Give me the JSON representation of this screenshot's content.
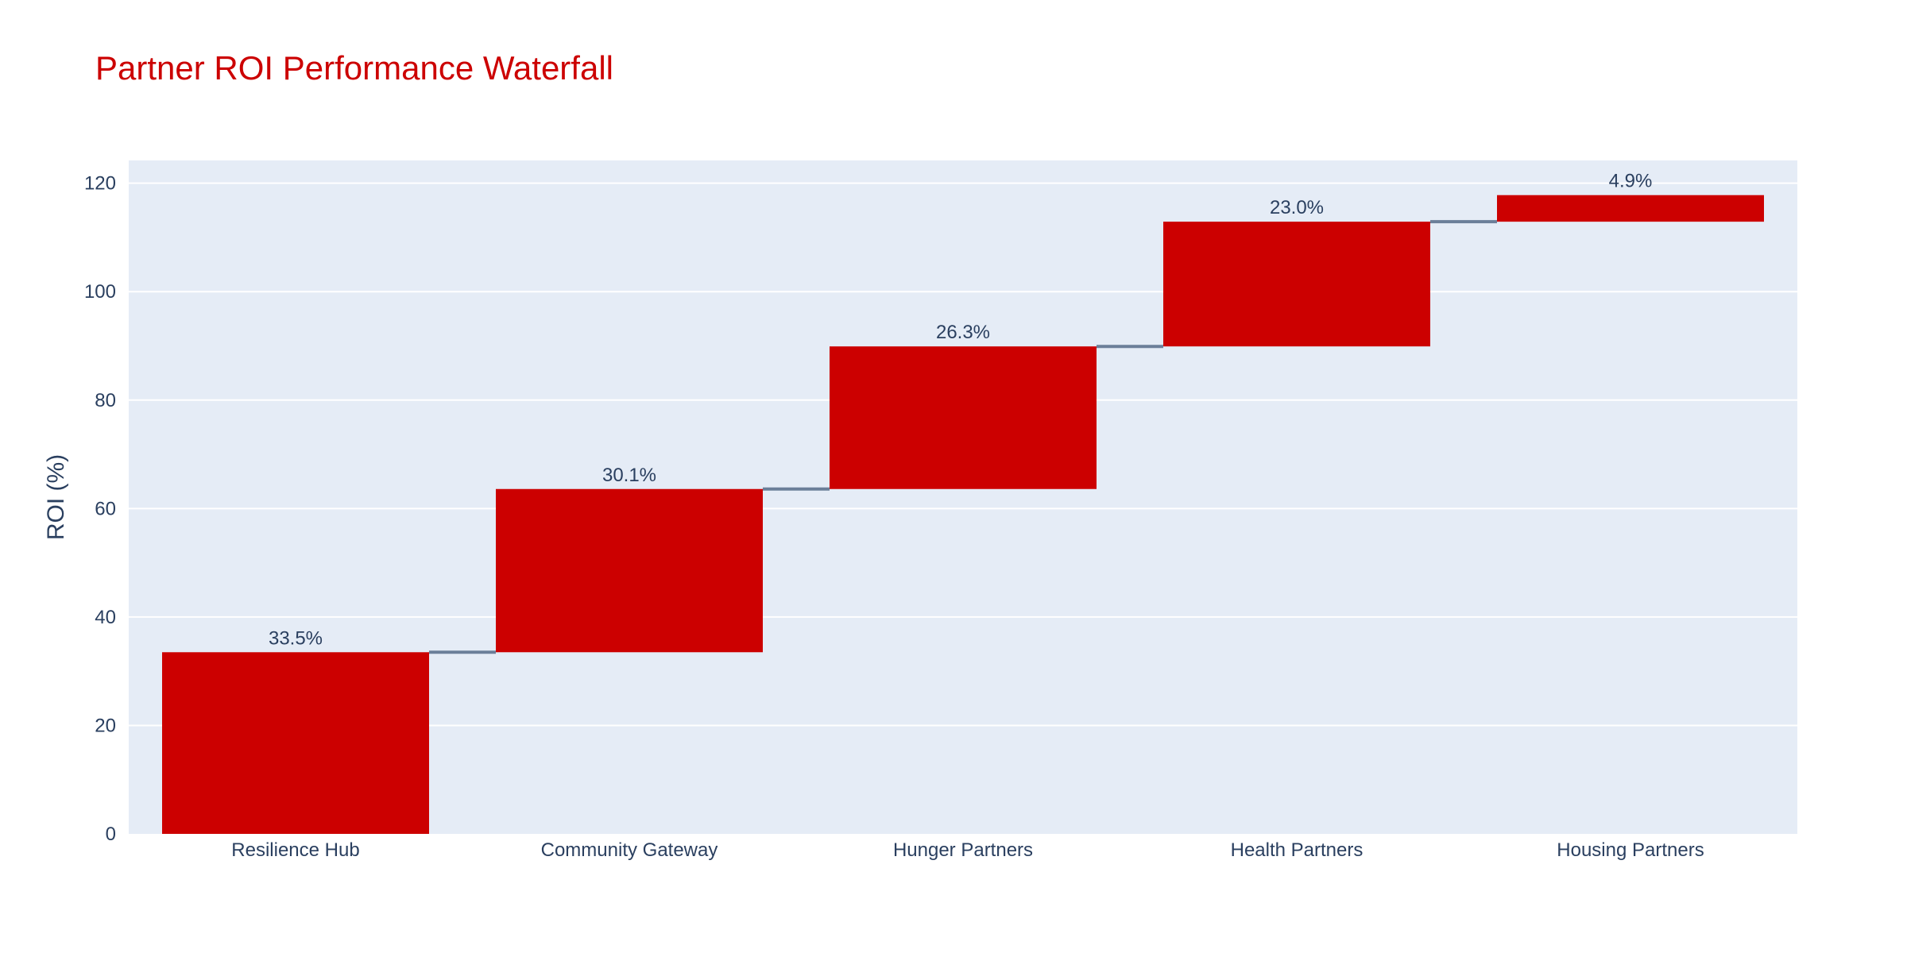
{
  "chart_data": {
    "type": "waterfall",
    "title": "Partner ROI Performance Waterfall",
    "xlabel": "",
    "ylabel": "ROI (%)",
    "categories": [
      "Resilience Hub",
      "Community Gateway",
      "Hunger Partners",
      "Health Partners",
      "Housing Partners"
    ],
    "values": [
      33.5,
      30.1,
      26.3,
      23.0,
      4.9
    ],
    "data_labels": [
      "33.5%",
      "30.1%",
      "26.3%",
      "23.0%",
      "4.9%"
    ],
    "ylim": [
      0,
      124.2
    ],
    "yticks": [
      0,
      20,
      40,
      60,
      80,
      100,
      120
    ],
    "grid": true,
    "connectors": true
  },
  "colors": {
    "title": "#cc0000",
    "bar": "#cc0000",
    "connector": "#6b7f99",
    "plot_bg": "#e5ecf6",
    "grid": "#ffffff",
    "axis_text": "#2a3f5f"
  }
}
